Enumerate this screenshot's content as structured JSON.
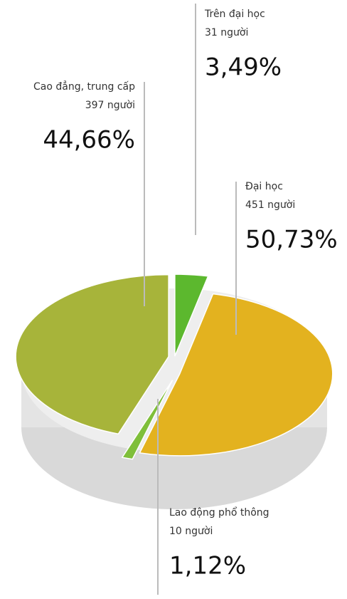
{
  "chart_data": {
    "type": "pie",
    "categories": [
      "Trên đại học",
      "Đại học",
      "Lao động phổ thông",
      "Cao đẳng, trung cấp"
    ],
    "count_labels": [
      "31 người",
      "451 người",
      "10 người",
      "397 người"
    ],
    "values": [
      3.49,
      50.73,
      1.12,
      44.66
    ],
    "value_labels": [
      "3,49%",
      "50,73%",
      "1,12%",
      "44,66%"
    ],
    "colors": [
      "#5cb82e",
      "#e3b21f",
      "#7fbf3a",
      "#a7b43a"
    ]
  }
}
